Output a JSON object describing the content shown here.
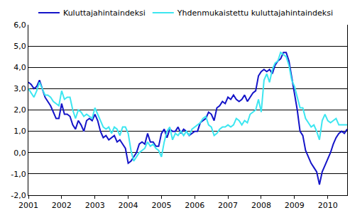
{
  "chart_data": {
    "type": "line",
    "categories": [
      "2001",
      null,
      null,
      null,
      null,
      null,
      null,
      null,
      null,
      null,
      null,
      null,
      "2002",
      null,
      null,
      null,
      null,
      null,
      null,
      null,
      null,
      null,
      null,
      null,
      "2003",
      null,
      null,
      null,
      null,
      null,
      null,
      null,
      null,
      null,
      null,
      null,
      "2004",
      null,
      null,
      null,
      null,
      null,
      null,
      null,
      null,
      null,
      null,
      null,
      "2005",
      null,
      null,
      null,
      null,
      null,
      null,
      null,
      null,
      null,
      null,
      null,
      "2006",
      null,
      null,
      null,
      null,
      null,
      null,
      null,
      null,
      null,
      null,
      null,
      "2007",
      null,
      null,
      null,
      null,
      null,
      null,
      null,
      null,
      null,
      null,
      null,
      "2008",
      null,
      null,
      null,
      null,
      null,
      null,
      null,
      null,
      null,
      null,
      null,
      "2009",
      null,
      null,
      null,
      null,
      null,
      null,
      null,
      null,
      null,
      null,
      null,
      "2010",
      null,
      null,
      null,
      null,
      null,
      null,
      null
    ],
    "series": [
      {
        "name": "Kuluttajahintaindeksi",
        "color": "#1414c8",
        "values": [
          3.3,
          3.2,
          3.0,
          3.1,
          3.4,
          3.0,
          2.6,
          2.4,
          2.2,
          1.9,
          1.6,
          1.6,
          2.3,
          1.8,
          1.8,
          1.7,
          1.3,
          1.1,
          1.5,
          1.3,
          1.0,
          1.5,
          1.6,
          1.5,
          1.8,
          1.5,
          1.0,
          0.7,
          0.8,
          0.6,
          0.7,
          0.8,
          0.5,
          0.6,
          0.4,
          0.2,
          -0.5,
          -0.4,
          -0.2,
          0.0,
          0.4,
          0.5,
          0.4,
          0.9,
          0.5,
          0.5,
          0.3,
          0.3,
          0.9,
          1.1,
          0.7,
          1.1,
          1.0,
          1.0,
          1.2,
          0.9,
          1.1,
          1.0,
          0.8,
          0.9,
          1.0,
          1.0,
          1.4,
          1.5,
          1.6,
          1.9,
          1.8,
          1.5,
          2.1,
          2.2,
          2.4,
          2.3,
          2.6,
          2.5,
          2.7,
          2.5,
          2.4,
          2.5,
          2.7,
          2.4,
          2.6,
          2.8,
          2.9,
          3.6,
          3.8,
          3.9,
          3.8,
          3.9,
          3.7,
          4.1,
          4.3,
          4.4,
          4.7,
          4.7,
          4.3,
          3.5,
          2.8,
          2.0,
          1.0,
          0.8,
          0.1,
          -0.2,
          -0.5,
          -0.7,
          -0.9,
          -1.5,
          -0.9,
          -0.6,
          -0.3,
          0.0,
          0.4,
          0.7,
          0.9,
          1.0,
          0.9,
          1.1
        ]
      },
      {
        "name": "Yhdenmukaistettu kuluttajahintaindeksi",
        "color": "#3ce6f0",
        "values": [
          3.0,
          2.8,
          2.6,
          2.9,
          3.3,
          3.0,
          2.7,
          2.7,
          2.6,
          2.4,
          2.3,
          2.2,
          2.9,
          2.5,
          2.6,
          2.6,
          2.0,
          1.6,
          2.0,
          1.9,
          1.7,
          1.8,
          1.7,
          1.6,
          2.1,
          1.8,
          1.5,
          1.2,
          1.1,
          1.2,
          0.9,
          1.2,
          1.1,
          0.8,
          1.2,
          1.2,
          0.9,
          0.1,
          -0.4,
          -0.2,
          0.0,
          0.1,
          0.2,
          0.5,
          0.3,
          0.4,
          0.2,
          0.1,
          -0.2,
          0.5,
          1.0,
          1.2,
          0.6,
          0.9,
          0.8,
          1.0,
          0.8,
          1.0,
          0.8,
          1.1,
          1.2,
          1.3,
          1.4,
          1.6,
          1.7,
          1.3,
          1.2,
          0.8,
          0.9,
          1.1,
          1.2,
          1.2,
          1.3,
          1.2,
          1.3,
          1.6,
          1.5,
          1.3,
          1.5,
          1.4,
          1.8,
          1.9,
          2.0,
          2.5,
          1.9,
          3.4,
          3.7,
          3.3,
          3.9,
          4.2,
          4.3,
          4.7,
          4.6,
          4.5,
          4.1,
          3.4,
          3.1,
          2.6,
          2.1,
          2.1,
          1.6,
          1.4,
          1.2,
          1.3,
          1.0,
          0.6,
          1.5,
          1.8,
          1.5,
          1.4,
          1.5,
          1.6,
          1.3,
          1.3,
          1.3,
          1.3
        ]
      }
    ],
    "ylim": [
      -2,
      6
    ],
    "yticks": [
      {
        "value": -2,
        "label": "-2,0"
      },
      {
        "value": -1,
        "label": "-1,0"
      },
      {
        "value": 0,
        "label": "0,0"
      },
      {
        "value": 1,
        "label": "1,0"
      },
      {
        "value": 2,
        "label": "2,0"
      },
      {
        "value": 3,
        "label": "3,0"
      },
      {
        "value": 4,
        "label": "4,0"
      },
      {
        "value": 5,
        "label": "5,0"
      },
      {
        "value": 6,
        "label": "6,0"
      }
    ],
    "grid": true,
    "legend": "top"
  }
}
